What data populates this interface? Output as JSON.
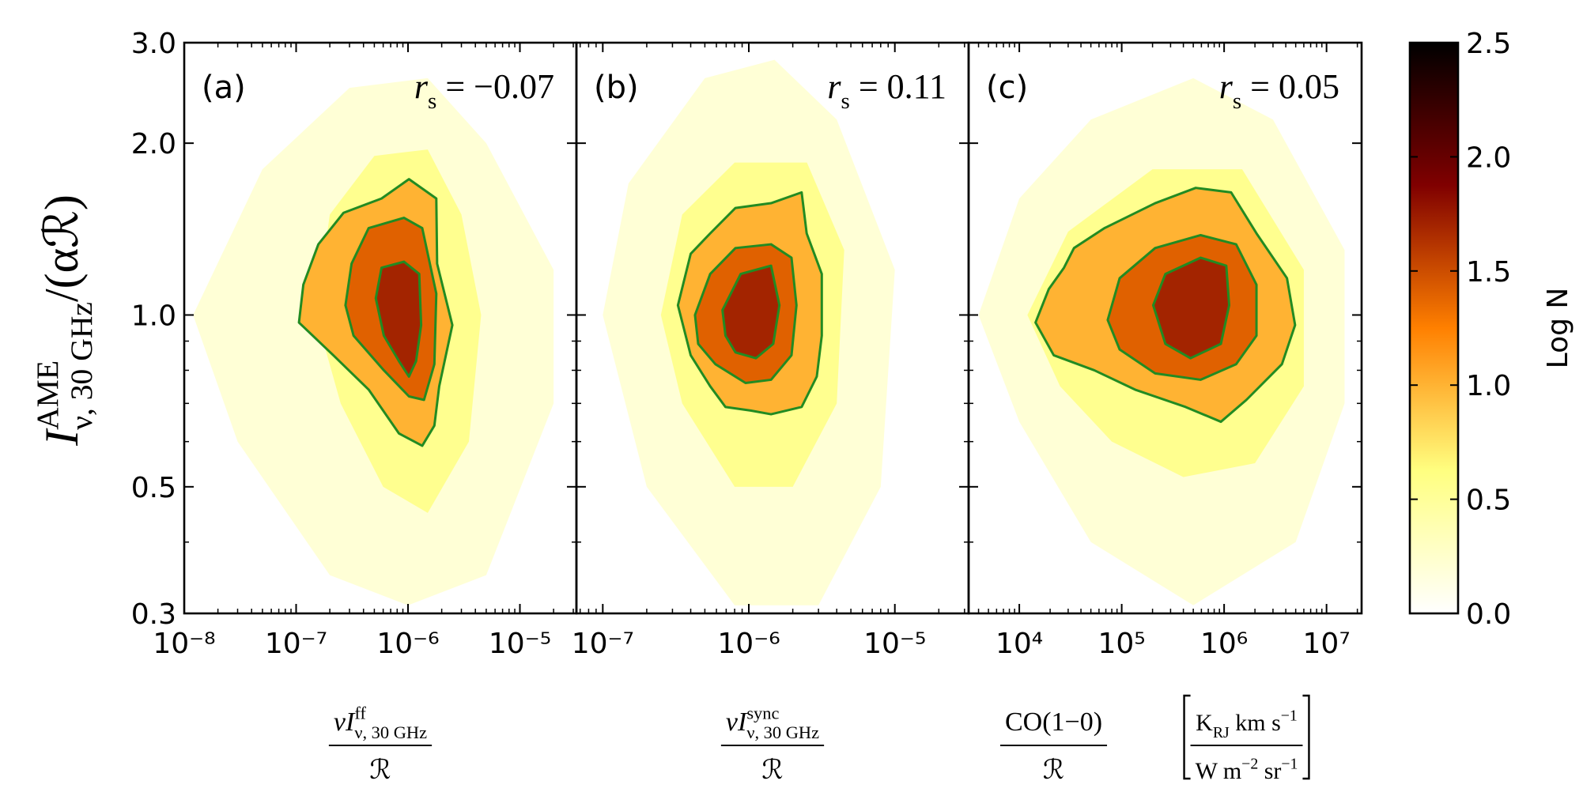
{
  "chart_data": [
    {
      "type": "hexbin",
      "panel_label": "(a)",
      "annotation": [
        {
          "text": "r"
        },
        {
          "text": "s",
          "shift": "sub"
        },
        {
          "text": " = −0.07"
        }
      ],
      "ylabel": [
        {
          "text": "I"
        },
        {
          "text": "AME",
          "shift": "sup"
        },
        {
          "text": "ν, 30 GHz",
          "shift": "sub"
        },
        {
          "text": "/(α"
        },
        {
          "text": "ℛ"
        },
        {
          "text": ")"
        }
      ],
      "xlabel": {
        "numerator": [
          {
            "text": "νI"
          },
          {
            "text": "ff",
            "shift": "sup"
          },
          {
            "text": "ν, 30 GHz",
            "shift": "sub"
          }
        ],
        "denominator": [
          {
            "text": "ℛ"
          }
        ]
      },
      "xscale": "log",
      "yscale": "log",
      "xlim": [
        1e-08,
        3.2e-05
      ],
      "xticks": [
        {
          "value": 1e-08,
          "label": "10⁻⁸"
        },
        {
          "value": 1e-07,
          "label": "10⁻⁷"
        },
        {
          "value": 1e-06,
          "label": "10⁻⁶"
        },
        {
          "value": 1e-05,
          "label": "10⁻⁵"
        }
      ],
      "ylim": [
        0.3,
        3.0
      ],
      "yticks": [
        0.3,
        0.5,
        {
          "value": 1,
          "label": "1.0"
        },
        {
          "value": 2,
          "label": "2.0"
        },
        {
          "value": 3,
          "label": "3.0"
        }
      ],
      "contour_color": "#228b22",
      "density": [
        {
          "level": 0.2,
          "x": [
            1.2e-08,
            5e-08,
            3e-07,
            1.5e-06,
            5e-06,
            2e-05,
            2e-05,
            5e-06,
            1e-06,
            2e-07,
            3e-08
          ],
          "y": [
            1.0,
            1.8,
            2.5,
            2.6,
            2.0,
            1.2,
            0.7,
            0.35,
            0.31,
            0.35,
            0.6
          ]
        },
        {
          "level": 0.55,
          "x": [
            1.5e-07,
            2e-07,
            5e-07,
            1.5e-06,
            3e-06,
            4.5e-06,
            3.5e-06,
            1.5e-06,
            6e-07,
            2.5e-07
          ],
          "y": [
            1.0,
            1.5,
            1.9,
            1.95,
            1.5,
            1.0,
            0.6,
            0.45,
            0.5,
            0.7
          ]
        }
      ],
      "contours": [
        {
          "level": 1.0,
          "x": [
            1.06e-07,
            1.16e-07,
            1.58e-07,
            2.65e-07,
            5.8e-07,
            1.02e-06,
            1.79e-06,
            1.82e-06,
            2.49e-06,
            1.9e-06,
            1.72e-06,
            1.34e-06,
            8.3e-07,
            4.45e-07,
            2.15e-07
          ],
          "y": [
            0.97,
            1.13,
            1.33,
            1.51,
            1.6,
            1.73,
            1.6,
            1.23,
            0.96,
            0.75,
            0.64,
            0.59,
            0.62,
            0.74,
            0.85
          ]
        },
        {
          "level": 1.4,
          "x": [
            2.76e-07,
            3.13e-07,
            4.45e-07,
            9.2e-07,
            1.34e-06,
            1.79e-06,
            1.72e-06,
            1.39e-06,
            1.02e-06,
            6.08e-07,
            3.26e-07
          ],
          "y": [
            1.04,
            1.23,
            1.42,
            1.48,
            1.42,
            1.09,
            0.82,
            0.71,
            0.72,
            0.8,
            0.92
          ]
        },
        {
          "level": 1.7,
          "x": [
            5.15e-07,
            5.8e-07,
            9.2e-07,
            1.26e-06,
            1.31e-06,
            1.18e-06,
            1.02e-06,
            8.3e-07,
            6.08e-07
          ],
          "y": [
            1.07,
            1.21,
            1.24,
            1.18,
            0.96,
            0.83,
            0.78,
            0.83,
            0.92
          ]
        }
      ]
    },
    {
      "type": "hexbin",
      "panel_label": "(b)",
      "annotation": [
        {
          "text": "r"
        },
        {
          "text": "s",
          "shift": "sub"
        },
        {
          "text": " = 0.11"
        }
      ],
      "xlabel": {
        "numerator": [
          {
            "text": "νI"
          },
          {
            "text": "sync",
            "shift": "sup"
          },
          {
            "text": "ν, 30 GHz",
            "shift": "sub"
          }
        ],
        "denominator": [
          {
            "text": "ℛ"
          }
        ]
      },
      "xscale": "log",
      "yscale": "log",
      "xlim": [
        6.6e-08,
        3.2e-05
      ],
      "xticks": [
        {
          "value": 1e-07,
          "label": "10⁻⁷"
        },
        {
          "value": 1e-06,
          "label": "10⁻⁶"
        },
        {
          "value": 1e-05,
          "label": "10⁻⁵"
        }
      ],
      "ylim": [
        0.3,
        3.0
      ],
      "yticks": [
        0.3,
        0.5,
        1,
        2,
        3
      ],
      "contour_color": "#228b22",
      "density": [
        {
          "level": 0.2,
          "x": [
            1e-07,
            1.5e-07,
            5e-07,
            1.5e-06,
            4e-06,
            1e-05,
            8e-06,
            3e-06,
            8e-07,
            2e-07
          ],
          "y": [
            1.0,
            1.7,
            2.6,
            2.8,
            2.2,
            1.2,
            0.5,
            0.31,
            0.31,
            0.5
          ]
        },
        {
          "level": 0.55,
          "x": [
            2.5e-07,
            3.5e-07,
            8e-07,
            2.5e-06,
            4.5e-06,
            4e-06,
            2e-06,
            8e-07,
            3.5e-07
          ],
          "y": [
            1.0,
            1.5,
            1.85,
            1.85,
            1.3,
            0.7,
            0.5,
            0.5,
            0.7
          ]
        }
      ],
      "contours": [
        {
          "level": 1.0,
          "x": [
            3.27e-07,
            4e-07,
            5.44e-07,
            8.1e-07,
            1.42e-06,
            2.3e-06,
            2.49e-06,
            3.16e-06,
            3.16e-06,
            2.92e-06,
            2.3e-06,
            1.42e-06,
            1.03e-06,
            6.92e-07,
            5.44e-07,
            4e-07
          ],
          "y": [
            1.04,
            1.28,
            1.39,
            1.54,
            1.57,
            1.64,
            1.39,
            1.18,
            0.92,
            0.78,
            0.69,
            0.67,
            0.68,
            0.69,
            0.75,
            0.85
          ]
        },
        {
          "level": 1.4,
          "x": [
            4.28e-07,
            5.44e-07,
            8.1e-07,
            1.42e-06,
            1.96e-06,
            2.12e-06,
            1.96e-06,
            1.42e-06,
            9.5e-07,
            5.9e-07,
            4.5e-07
          ],
          "y": [
            1.0,
            1.18,
            1.31,
            1.33,
            1.26,
            1.04,
            0.85,
            0.77,
            0.76,
            0.82,
            0.89
          ]
        },
        {
          "level": 1.7,
          "x": [
            6.6e-07,
            8.8e-07,
            1.42e-06,
            1.62e-06,
            1.47e-06,
            1.12e-06,
            8.1e-07,
            6.92e-07
          ],
          "y": [
            1.02,
            1.18,
            1.22,
            1.04,
            0.89,
            0.84,
            0.86,
            0.92
          ]
        }
      ]
    },
    {
      "type": "hexbin",
      "panel_label": "(c)",
      "annotation": [
        {
          "text": "r"
        },
        {
          "text": "s",
          "shift": "sub"
        },
        {
          "text": " = 0.05"
        }
      ],
      "xlabel": {
        "numerator": [
          {
            "text": "CO(1−0)"
          }
        ],
        "denominator": [
          {
            "text": "ℛ"
          }
        ],
        "unit_numerator": [
          {
            "text": "K"
          },
          {
            "text": "RJ",
            "shift": "sub"
          },
          {
            "text": " km s"
          },
          {
            "text": "−1",
            "shift": "sup"
          }
        ],
        "unit_denominator": [
          {
            "text": "W m"
          },
          {
            "text": "−2",
            "shift": "sup"
          },
          {
            "text": " sr"
          },
          {
            "text": "−1",
            "shift": "sup"
          }
        ]
      },
      "xscale": "log",
      "yscale": "log",
      "xlim": [
        3200,
        22000000
      ],
      "xticks": [
        {
          "value": 10000,
          "label": "10⁴"
        },
        {
          "value": 100000,
          "label": "10⁵"
        },
        {
          "value": 1000000,
          "label": "10⁶"
        },
        {
          "value": 10000000,
          "label": "10⁷"
        }
      ],
      "ylim": [
        0.3,
        3.0
      ],
      "yticks": [
        0.3,
        0.5,
        1,
        2,
        3
      ],
      "contour_color": "#228b22",
      "density": [
        {
          "level": 0.2,
          "x": [
            4000,
            10000,
            50000,
            500000,
            3000000,
            15000000,
            15000000,
            5000000,
            500000,
            50000,
            10000
          ],
          "y": [
            1.0,
            1.6,
            2.2,
            2.6,
            2.2,
            1.3,
            0.7,
            0.4,
            0.31,
            0.4,
            0.65
          ]
        },
        {
          "level": 0.55,
          "x": [
            12000,
            30000,
            200000,
            1500000,
            6000000,
            6000000,
            2000000,
            400000,
            80000,
            25000
          ],
          "y": [
            1.0,
            1.4,
            1.8,
            1.8,
            1.2,
            0.75,
            0.55,
            0.52,
            0.6,
            0.75
          ]
        }
      ],
      "contours": [
        {
          "level": 1.0,
          "x": [
            14400,
            19400,
            27300,
            34200,
            68000,
            212000,
            528000,
            1170000,
            2070000,
            4110000,
            4930000,
            3670000,
            1650000,
            930000,
            420000,
            135000,
            54000,
            21700
          ],
          "y": [
            0.97,
            1.11,
            1.21,
            1.31,
            1.42,
            1.57,
            1.67,
            1.64,
            1.39,
            1.16,
            0.96,
            0.82,
            0.71,
            0.65,
            0.69,
            0.74,
            0.8,
            0.85
          ]
        },
        {
          "level": 1.4,
          "x": [
            73000,
            95500,
            212000,
            590000,
            1310000,
            2070000,
            2070000,
            1310000,
            590000,
            212000,
            95500
          ],
          "y": [
            0.98,
            1.16,
            1.31,
            1.38,
            1.33,
            1.13,
            0.92,
            0.82,
            0.77,
            0.79,
            0.87
          ]
        },
        {
          "level": 1.7,
          "x": [
            203000,
            267000,
            590000,
            1050000,
            1120000,
            930000,
            470000,
            267000
          ],
          "y": [
            1.04,
            1.18,
            1.26,
            1.22,
            1.04,
            0.89,
            0.84,
            0.89
          ]
        }
      ]
    },
    {
      "type": "colorbar",
      "label": "Log N",
      "colormap": "afmhot_r",
      "lim": [
        0,
        2.5
      ],
      "ticks": [
        {
          "value": 0,
          "label": "0.0"
        },
        0.5,
        {
          "value": 1,
          "label": "1.0"
        },
        1.5,
        {
          "value": 2,
          "label": "2.0"
        },
        2.5
      ]
    }
  ]
}
